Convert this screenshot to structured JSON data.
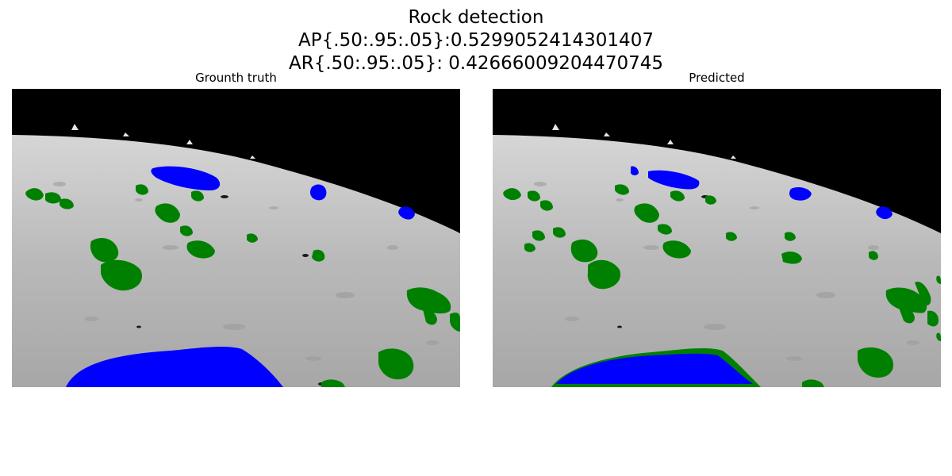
{
  "title": {
    "line1": "Rock detection",
    "line2": "AP{.50:.95:.05}:0.5299052414301407",
    "line3": "AR{.50:.95:.05}: 0.42666009204470745"
  },
  "panels": {
    "left_label": "Grounth truth",
    "right_label": "Predicted"
  },
  "colors": {
    "sky": "#000000",
    "ground_light": "#cfcfcf",
    "ground_dark": "#8d8d8d",
    "large_rock_mask": "#0000ff",
    "small_rock_mask": "#008000"
  }
}
